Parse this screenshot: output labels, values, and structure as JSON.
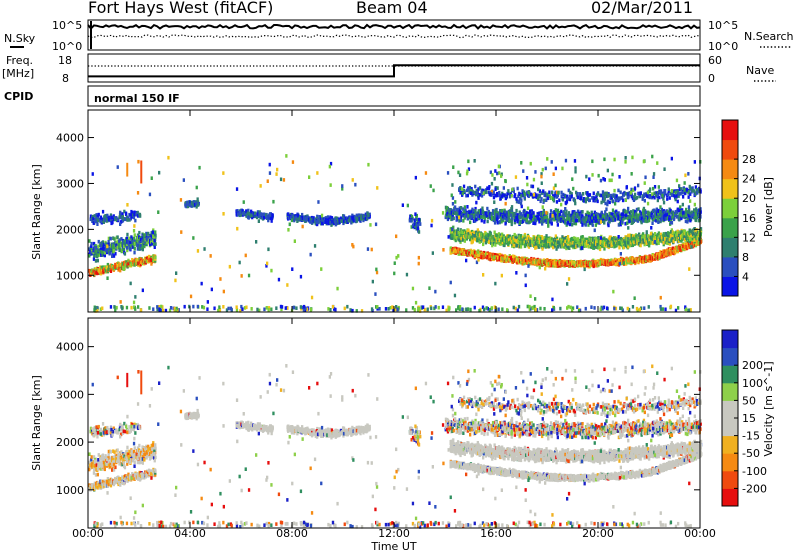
{
  "header": {
    "station": "Fort Hays West (fitACF)",
    "beam": "Beam 04",
    "date": "02/Mar/2011"
  },
  "noise_panel": {
    "left_label": "N.Sky",
    "right_label": "N.Search",
    "left_ticks": [
      "10^5",
      "10^0"
    ],
    "right_ticks": [
      "10^5",
      "10^0"
    ]
  },
  "freq_panel": {
    "left_label_line1": "Freq.",
    "left_label_line2": "[MHz]",
    "right_label": "Nave",
    "left_ticks": [
      "18",
      "8"
    ],
    "right_ticks": [
      "60",
      "0"
    ],
    "freq_step_hour": 12,
    "freq_values_mhz": [
      10,
      14
    ]
  },
  "cpid_panel": {
    "label": "CPID",
    "mode": "normal 150 IF"
  },
  "colors": {
    "power": [
      "#0a14e6",
      "#2a4fbf",
      "#2f7f6f",
      "#3aa24a",
      "#7ccf3a",
      "#f0c21a",
      "#f58a12",
      "#f04a0e",
      "#e60e0e"
    ],
    "velocity": [
      "#e60e0e",
      "#f04a0e",
      "#f58a12",
      "#f0b020",
      "#c8c8c0",
      "#c8c8c0",
      "#8ed04a",
      "#2f8f5f",
      "#2a4fbf",
      "#1a20c8"
    ],
    "ground_scatter": "#c8c8c0"
  },
  "chart_data": [
    {
      "type": "heatmap",
      "name": "power",
      "ylabel": "Slant Range [km]",
      "y_ticks": [
        1000,
        2000,
        3000,
        4000
      ],
      "ylim": [
        200,
        4600
      ],
      "xlim": [
        0,
        24
      ],
      "colorbar_label": "Power [dB]",
      "colorbar_ticks": [
        "4",
        "8",
        "12",
        "16",
        "20",
        "24",
        "28"
      ],
      "colorbar_range": [
        0,
        32
      ]
    },
    {
      "type": "heatmap",
      "name": "velocity",
      "xlabel": "Time UT",
      "ylabel": "Slant Range [km]",
      "x_ticks": [
        "00:00",
        "04:00",
        "08:00",
        "12:00",
        "16:00",
        "20:00",
        "00:00"
      ],
      "x_tick_hours": [
        0,
        4,
        8,
        12,
        16,
        20,
        24
      ],
      "y_ticks": [
        1000,
        2000,
        3000,
        4000
      ],
      "ylim": [
        200,
        4600
      ],
      "xlim": [
        0,
        24
      ],
      "colorbar_label": "Velocity [m s^-1]",
      "colorbar_ticks": [
        "-200",
        "-100",
        "-50",
        "-15",
        "15",
        "50",
        "100",
        "200"
      ]
    }
  ]
}
